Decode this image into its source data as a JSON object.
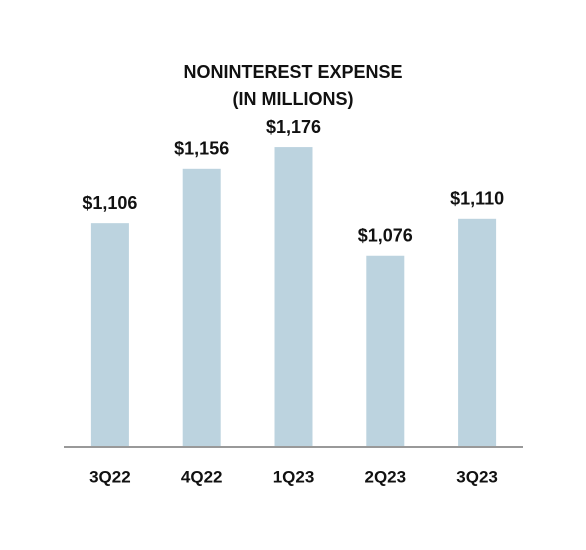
{
  "chart_data": {
    "type": "bar",
    "title": "NONINTEREST EXPENSE",
    "subtitle": "(IN MILLIONS)",
    "categories": [
      "3Q22",
      "4Q22",
      "1Q23",
      "2Q23",
      "3Q23"
    ],
    "values": [
      1106,
      1156,
      1176,
      1076,
      1110
    ],
    "value_labels": [
      "$1,106",
      "$1,156",
      "$1,176",
      "$1,076",
      "$1,110"
    ],
    "color": "#bcd3df",
    "ylim": [
      900,
      1200
    ]
  }
}
